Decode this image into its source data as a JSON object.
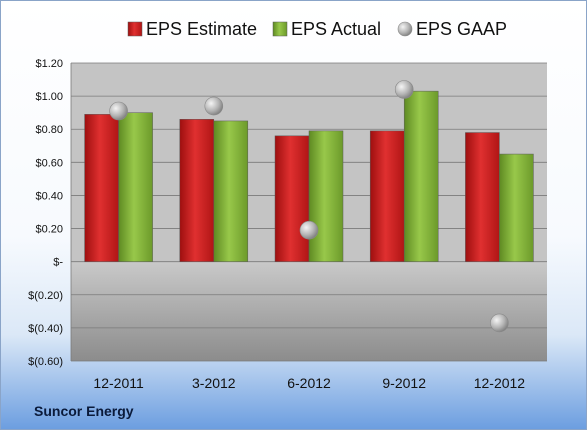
{
  "company": "Suncor Energy",
  "chart_data": {
    "type": "bar",
    "categories": [
      "12-2011",
      "3-2012",
      "6-2012",
      "9-2012",
      "12-2012"
    ],
    "series": [
      {
        "name": "EPS Estimate",
        "kind": "bar",
        "color": "#cc1a1a",
        "values": [
          0.89,
          0.86,
          0.76,
          0.79,
          0.78
        ]
      },
      {
        "name": "EPS Actual",
        "kind": "bar",
        "color": "#7aa832",
        "values": [
          0.9,
          0.85,
          0.79,
          1.03,
          0.65
        ]
      },
      {
        "name": "EPS GAAP",
        "kind": "marker",
        "color": "#a8a8a8",
        "values": [
          0.91,
          0.94,
          0.19,
          1.04,
          -0.37
        ]
      }
    ],
    "ylim": [
      -0.6,
      1.2
    ],
    "yticks": [
      1.2,
      1.0,
      0.8,
      0.6,
      0.4,
      0.2,
      0,
      -0.2,
      -0.4,
      -0.6
    ],
    "ytick_labels": [
      "$1.20",
      "$1.00",
      "$0.80",
      "$0.60",
      "$0.40",
      "$0.20",
      "$-",
      "$(0.20)",
      "$(0.40)",
      "$(0.60)"
    ],
    "grid": true,
    "legend": "top"
  }
}
